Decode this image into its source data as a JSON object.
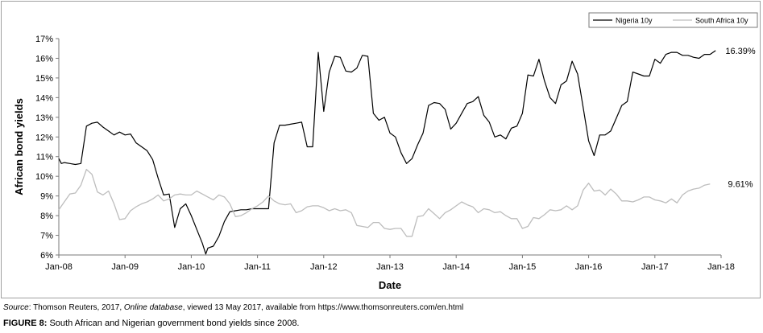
{
  "chart_data": {
    "type": "line",
    "xlabel": "Date",
    "ylabel": "African bond yields",
    "x_ticks": [
      "Jan-08",
      "Jan-09",
      "Jan-10",
      "Jan-11",
      "Jan-12",
      "Jan-13",
      "Jan-14",
      "Jan-15",
      "Jan-16",
      "Jan-17",
      "Jan-18"
    ],
    "y_ticks": [
      "6%",
      "7%",
      "8%",
      "9%",
      "10%",
      "11%",
      "12%",
      "13%",
      "14%",
      "15%",
      "16%",
      "17%"
    ],
    "ylim": [
      6,
      17
    ],
    "xlim": [
      "2008-01",
      "2018-01"
    ],
    "legend_position": "top-right",
    "grid": false,
    "series": [
      {
        "name": "Nigeria 10y",
        "color": "#000000",
        "end_label": "16.39%",
        "points": [
          [
            "2008-01",
            10.9
          ],
          [
            "2008-01-15",
            10.65
          ],
          [
            "2008-02",
            10.7
          ],
          [
            "2008-03",
            10.65
          ],
          [
            "2008-04",
            10.6
          ],
          [
            "2008-05",
            10.65
          ],
          [
            "2008-06",
            12.55
          ],
          [
            "2008-07",
            12.7
          ],
          [
            "2008-08",
            12.75
          ],
          [
            "2008-09",
            12.5
          ],
          [
            "2008-10",
            12.3
          ],
          [
            "2008-11",
            12.1
          ],
          [
            "2008-12",
            12.25
          ],
          [
            "2009-01",
            12.1
          ],
          [
            "2009-02",
            12.15
          ],
          [
            "2009-03",
            11.7
          ],
          [
            "2009-04",
            11.5
          ],
          [
            "2009-05",
            11.3
          ],
          [
            "2009-06",
            10.85
          ],
          [
            "2009-07",
            9.9
          ],
          [
            "2009-08",
            9.05
          ],
          [
            "2009-09",
            9.1
          ],
          [
            "2009-10",
            7.4
          ],
          [
            "2009-11",
            8.35
          ],
          [
            "2009-12",
            8.6
          ],
          [
            "2010-01",
            8.0
          ],
          [
            "2010-02",
            7.3
          ],
          [
            "2010-03",
            6.6
          ],
          [
            "2010-03-20",
            6.05
          ],
          [
            "2010-04",
            6.35
          ],
          [
            "2010-05",
            6.45
          ],
          [
            "2010-06",
            6.95
          ],
          [
            "2010-07",
            7.7
          ],
          [
            "2010-08",
            8.2
          ],
          [
            "2010-09",
            8.25
          ],
          [
            "2010-10",
            8.3
          ],
          [
            "2010-11",
            8.3
          ],
          [
            "2010-12",
            8.35
          ],
          [
            "2011-01",
            8.35
          ],
          [
            "2011-02",
            8.35
          ],
          [
            "2011-03",
            8.35
          ],
          [
            "2011-04",
            11.7
          ],
          [
            "2011-05",
            12.6
          ],
          [
            "2011-06",
            12.6
          ],
          [
            "2011-07",
            12.65
          ],
          [
            "2011-08",
            12.7
          ],
          [
            "2011-09",
            12.75
          ],
          [
            "2011-10",
            11.5
          ],
          [
            "2011-11",
            11.5
          ],
          [
            "2011-12",
            16.3
          ],
          [
            "2012-01",
            13.3
          ],
          [
            "2012-02",
            15.3
          ],
          [
            "2012-03",
            16.1
          ],
          [
            "2012-04",
            16.05
          ],
          [
            "2012-05",
            15.35
          ],
          [
            "2012-06",
            15.3
          ],
          [
            "2012-07",
            15.5
          ],
          [
            "2012-08",
            16.15
          ],
          [
            "2012-09",
            16.1
          ],
          [
            "2012-10",
            13.2
          ],
          [
            "2012-11",
            12.85
          ],
          [
            "2012-12",
            13.0
          ],
          [
            "2013-01",
            12.2
          ],
          [
            "2013-02",
            12.0
          ],
          [
            "2013-03",
            11.2
          ],
          [
            "2013-04",
            10.65
          ],
          [
            "2013-05",
            10.9
          ],
          [
            "2013-06",
            11.6
          ],
          [
            "2013-07",
            12.2
          ],
          [
            "2013-08",
            13.6
          ],
          [
            "2013-09",
            13.75
          ],
          [
            "2013-10",
            13.7
          ],
          [
            "2013-11",
            13.4
          ],
          [
            "2013-12",
            12.4
          ],
          [
            "2014-01",
            12.7
          ],
          [
            "2014-02",
            13.2
          ],
          [
            "2014-03",
            13.7
          ],
          [
            "2014-04",
            13.8
          ],
          [
            "2014-05",
            14.05
          ],
          [
            "2014-06",
            13.1
          ],
          [
            "2014-07",
            12.75
          ],
          [
            "2014-08",
            12.0
          ],
          [
            "2014-09",
            12.1
          ],
          [
            "2014-10",
            11.9
          ],
          [
            "2014-11",
            12.45
          ],
          [
            "2014-12",
            12.55
          ],
          [
            "2015-01",
            13.2
          ],
          [
            "2015-02",
            15.15
          ],
          [
            "2015-03",
            15.1
          ],
          [
            "2015-04",
            15.95
          ],
          [
            "2015-05",
            14.85
          ],
          [
            "2015-06",
            14.0
          ],
          [
            "2015-07",
            13.7
          ],
          [
            "2015-08",
            14.65
          ],
          [
            "2015-09",
            14.85
          ],
          [
            "2015-10",
            15.85
          ],
          [
            "2015-11",
            15.2
          ],
          [
            "2015-12",
            13.5
          ],
          [
            "2016-01",
            11.8
          ],
          [
            "2016-02",
            11.05
          ],
          [
            "2016-03",
            12.1
          ],
          [
            "2016-04",
            12.1
          ],
          [
            "2016-05",
            12.3
          ],
          [
            "2016-06",
            12.95
          ],
          [
            "2016-07",
            13.6
          ],
          [
            "2016-08",
            13.8
          ],
          [
            "2016-09",
            15.3
          ],
          [
            "2016-10",
            15.2
          ],
          [
            "2016-11",
            15.1
          ],
          [
            "2016-12",
            15.1
          ],
          [
            "2017-01",
            15.95
          ],
          [
            "2017-02",
            15.75
          ],
          [
            "2017-03",
            16.2
          ],
          [
            "2017-04",
            16.3
          ],
          [
            "2017-05",
            16.3
          ],
          [
            "2017-06",
            16.15
          ],
          [
            "2017-07",
            16.15
          ],
          [
            "2017-08",
            16.05
          ],
          [
            "2017-09",
            16.0
          ],
          [
            "2017-10",
            16.2
          ],
          [
            "2017-11",
            16.2
          ],
          [
            "2017-12",
            16.39
          ]
        ]
      },
      {
        "name": "South Africa 10y",
        "color": "#bdbdbd",
        "end_label": "9.61%",
        "points": [
          [
            "2008-01",
            8.3
          ],
          [
            "2008-02",
            8.7
          ],
          [
            "2008-03",
            9.1
          ],
          [
            "2008-04",
            9.15
          ],
          [
            "2008-05",
            9.55
          ],
          [
            "2008-06",
            10.35
          ],
          [
            "2008-07",
            10.1
          ],
          [
            "2008-08",
            9.2
          ],
          [
            "2008-09",
            9.05
          ],
          [
            "2008-10",
            9.25
          ],
          [
            "2008-11",
            8.6
          ],
          [
            "2008-12",
            7.8
          ],
          [
            "2009-01",
            7.85
          ],
          [
            "2009-02",
            8.25
          ],
          [
            "2009-03",
            8.45
          ],
          [
            "2009-04",
            8.6
          ],
          [
            "2009-05",
            8.7
          ],
          [
            "2009-06",
            8.85
          ],
          [
            "2009-07",
            9.05
          ],
          [
            "2009-08",
            8.75
          ],
          [
            "2009-09",
            8.85
          ],
          [
            "2009-10",
            9.05
          ],
          [
            "2009-11",
            9.1
          ],
          [
            "2009-12",
            9.05
          ],
          [
            "2010-01",
            9.05
          ],
          [
            "2010-02",
            9.25
          ],
          [
            "2010-03",
            9.1
          ],
          [
            "2010-04",
            8.95
          ],
          [
            "2010-05",
            8.8
          ],
          [
            "2010-06",
            9.05
          ],
          [
            "2010-07",
            8.95
          ],
          [
            "2010-08",
            8.6
          ],
          [
            "2010-09",
            7.95
          ],
          [
            "2010-10",
            8.0
          ],
          [
            "2010-11",
            8.15
          ],
          [
            "2010-12",
            8.35
          ],
          [
            "2011-01",
            8.5
          ],
          [
            "2011-02",
            8.7
          ],
          [
            "2011-03",
            9.0
          ],
          [
            "2011-04",
            8.75
          ],
          [
            "2011-05",
            8.6
          ],
          [
            "2011-06",
            8.55
          ],
          [
            "2011-07",
            8.6
          ],
          [
            "2011-08",
            8.15
          ],
          [
            "2011-09",
            8.25
          ],
          [
            "2011-10",
            8.45
          ],
          [
            "2011-11",
            8.5
          ],
          [
            "2011-12",
            8.5
          ],
          [
            "2012-01",
            8.4
          ],
          [
            "2012-02",
            8.25
          ],
          [
            "2012-03",
            8.35
          ],
          [
            "2012-04",
            8.25
          ],
          [
            "2012-05",
            8.3
          ],
          [
            "2012-06",
            8.15
          ],
          [
            "2012-07",
            7.5
          ],
          [
            "2012-08",
            7.45
          ],
          [
            "2012-09",
            7.4
          ],
          [
            "2012-10",
            7.65
          ],
          [
            "2012-11",
            7.65
          ],
          [
            "2012-12",
            7.35
          ],
          [
            "2013-01",
            7.3
          ],
          [
            "2013-02",
            7.35
          ],
          [
            "2013-03",
            7.35
          ],
          [
            "2013-04",
            6.95
          ],
          [
            "2013-05",
            6.95
          ],
          [
            "2013-06",
            7.95
          ],
          [
            "2013-07",
            8.0
          ],
          [
            "2013-08",
            8.35
          ],
          [
            "2013-09",
            8.1
          ],
          [
            "2013-10",
            7.85
          ],
          [
            "2013-11",
            8.15
          ],
          [
            "2013-12",
            8.3
          ],
          [
            "2014-01",
            8.5
          ],
          [
            "2014-02",
            8.7
          ],
          [
            "2014-03",
            8.55
          ],
          [
            "2014-04",
            8.45
          ],
          [
            "2014-05",
            8.15
          ],
          [
            "2014-06",
            8.35
          ],
          [
            "2014-07",
            8.3
          ],
          [
            "2014-08",
            8.15
          ],
          [
            "2014-09",
            8.2
          ],
          [
            "2014-10",
            8.0
          ],
          [
            "2014-11",
            7.85
          ],
          [
            "2014-12",
            7.85
          ],
          [
            "2015-01",
            7.35
          ],
          [
            "2015-02",
            7.45
          ],
          [
            "2015-03",
            7.9
          ],
          [
            "2015-04",
            7.85
          ],
          [
            "2015-05",
            8.05
          ],
          [
            "2015-06",
            8.3
          ],
          [
            "2015-07",
            8.25
          ],
          [
            "2015-08",
            8.3
          ],
          [
            "2015-09",
            8.5
          ],
          [
            "2015-10",
            8.3
          ],
          [
            "2015-11",
            8.5
          ],
          [
            "2015-12",
            9.3
          ],
          [
            "2016-01",
            9.65
          ],
          [
            "2016-02",
            9.25
          ],
          [
            "2016-03",
            9.3
          ],
          [
            "2016-04",
            9.05
          ],
          [
            "2016-05",
            9.35
          ],
          [
            "2016-06",
            9.1
          ],
          [
            "2016-07",
            8.75
          ],
          [
            "2016-08",
            8.75
          ],
          [
            "2016-09",
            8.7
          ],
          [
            "2016-10",
            8.8
          ],
          [
            "2016-11",
            8.95
          ],
          [
            "2016-12",
            8.95
          ],
          [
            "2017-01",
            8.8
          ],
          [
            "2017-02",
            8.75
          ],
          [
            "2017-03",
            8.65
          ],
          [
            "2017-04",
            8.85
          ],
          [
            "2017-05",
            8.65
          ],
          [
            "2017-06",
            9.05
          ],
          [
            "2017-07",
            9.25
          ],
          [
            "2017-08",
            9.35
          ],
          [
            "2017-09",
            9.4
          ],
          [
            "2017-10",
            9.55
          ],
          [
            "2017-11",
            9.61
          ]
        ]
      }
    ]
  },
  "caption": {
    "source_label": "Source",
    "source_text_1": ": Thomson Reuters, 2017, ",
    "source_italic": "Online database",
    "source_text_2": ", viewed 13 May 2017, available from https://www.thomsonreuters.com/en.html",
    "figure_label": "FIGURE 8:",
    "figure_text": " South African and Nigerian government bond yields since 2008."
  }
}
